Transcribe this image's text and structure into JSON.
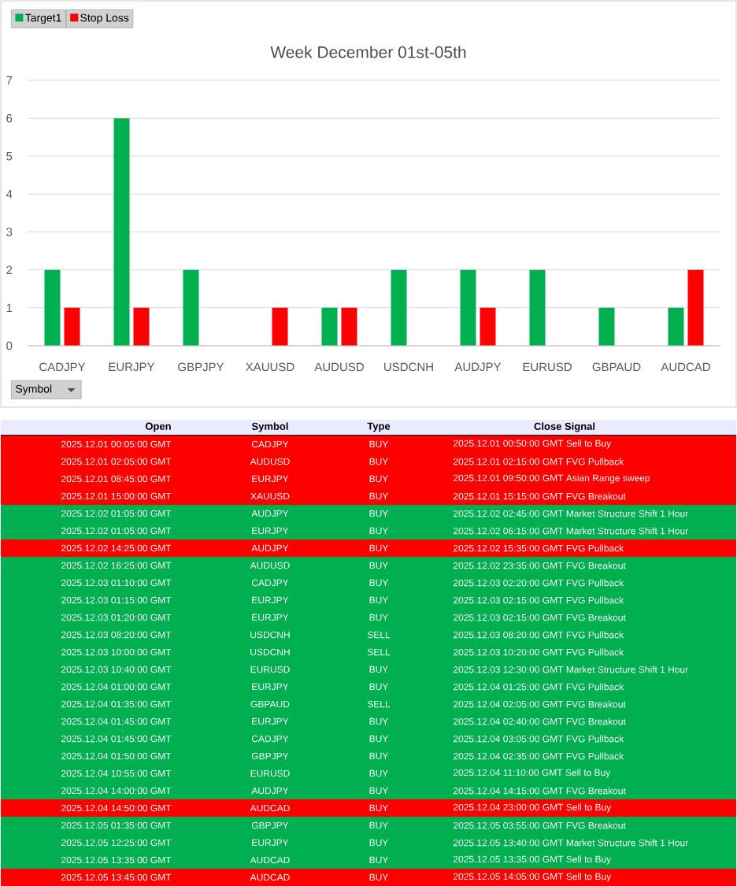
{
  "chart_data": [
    {
      "type": "bar",
      "title": "Week December 01st-05th",
      "xlabel": "Symbol",
      "categories": [
        "CADJPY",
        "EURJPY",
        "GBPJPY",
        "XAUUSD",
        "AUDUSD",
        "USDCNH",
        "AUDJPY",
        "EURUSD",
        "GBPAUD",
        "AUDCAD"
      ],
      "series": [
        {
          "name": "Target1",
          "color": "#00b050",
          "values": [
            2,
            6,
            2,
            null,
            1,
            2,
            2,
            2,
            1,
            1
          ]
        },
        {
          "name": "Stop Loss",
          "color": "#ff0000",
          "values": [
            1,
            1,
            null,
            1,
            1,
            null,
            1,
            null,
            null,
            2
          ]
        }
      ],
      "ylim": [
        0,
        7
      ],
      "yticks": [
        0,
        1,
        2,
        3,
        4,
        5,
        6,
        7
      ],
      "grid": "y",
      "legend": "top left"
    },
    {
      "type": "other",
      "colors": [
        "#ff0000",
        "#ff0000",
        "#ff0000",
        "#ff0000",
        "#00b050",
        "#00b050",
        "#ff0000",
        "#00b050",
        "#00b050",
        "#00b050",
        "#00b050",
        "#00b050",
        "#00b050",
        "#00b050",
        "#00b050",
        "#00b050",
        "#00b050",
        "#00b050",
        "#00b050",
        "#00b050",
        "#00b050",
        "#ff0000",
        "#00b050",
        "#00b050",
        "#00b050",
        "#ff0000"
      ],
      "annotations": [
        "Open",
        "Symbol",
        "Type",
        "Close Signal",
        "2025.12.01 00:05:00 GMT",
        "CADJPY",
        "BUY",
        "2025.12.01 00:50:00 GMT Sell to Buy",
        "2025.12.01 02:05:00 GMT",
        "AUDUSD",
        "BUY",
        "2025.12.01 02:15:00 GMT FVG Pullback",
        "2025.12.01 08:45:00 GMT",
        "EURJPY",
        "BUY",
        "2025.12.01 09:50:00 GMT Asian Range sweep",
        "2025.12.01 15:00:00 GMT",
        "XAUUSD",
        "BUY",
        "2025.12.01 15:15:00 GMT FVG Breakout",
        "2025.12.02 01:05:00 GMT",
        "AUDJPY",
        "BUY",
        "2025.12.02 02:45:00 GMT Market Structure Shift 1 Hour",
        "2025.12.02 01:05:00 GMT",
        "EURJPY",
        "BUY",
        "2025.12.02 06:15:00 GMT Market Structure Shift 1 Hour",
        "2025.12.02 14:25:00 GMT",
        "AUDJPY",
        "BUY",
        "2025.12.02 15:35:00 GMT FVG Pullback",
        "2025.12.02 16:25:00 GMT",
        "AUDUSD",
        "BUY",
        "2025.12.02 23:35:00 GMT FVG Breakout",
        "2025.12.03 01:10:00 GMT",
        "CADJPY",
        "BUY",
        "2025.12.03 02:20:00 GMT FVG Pullback",
        "2025.12.03 01:15:00 GMT",
        "EURJPY",
        "BUY",
        "2025.12.03 02:15:00 GMT FVG Pullback",
        "2025.12.03 01:20:00 GMT",
        "EURJPY",
        "BUY",
        "2025.12.03 02:15:00 GMT FVG Breakout",
        "2025.12.03 08:20:00 GMT",
        "USDCNH",
        "SELL",
        "2025.12.03 08:20:00 GMT FVG Pullback",
        "2025.12.03 10:00:00 GMT",
        "USDCNH",
        "SELL",
        "2025.12.03 10:20:00 GMT FVG Pullback",
        "2025.12.03 10:40:00 GMT",
        "EURUSD",
        "BUY",
        "2025.12.03 12:30:00 GMT Market Structure Shift 1 Hour",
        "2025.12.04 01:00:00 GMT",
        "EURJPY",
        "BUY",
        "2025.12.04 01:25:00 GMT FVG Pullback",
        "2025.12.04 01:35:00 GMT",
        "GBPAUD",
        "SELL",
        "2025.12.04 02:05:00 GMT FVG Breakout",
        "2025.12.04 01:45:00 GMT",
        "EURJPY",
        "BUY",
        "2025.12.04 02:40:00 GMT FVG Breakout",
        "2025.12.04 01:45:00 GMT",
        "CADJPY",
        "BUY",
        "2025.12.04 03:05:00 GMT FVG Pullback",
        "2025.12.04 01:50:00 GMT",
        "GBPJPY",
        "BUY",
        "2025.12.04 02:35:00 GMT FVG Pullback",
        "2025.12.04 10:55:00 GMT",
        "EURUSD",
        "BUY",
        "2025.12.04 11:10:00 GMT Sell to Buy",
        "2025.12.04 14:00:00 GMT",
        "AUDJPY",
        "BUY",
        "2025.12.04 14:15:00 GMT FVG Breakout",
        "2025.12.04 14:50:00 GMT",
        "AUDCAD",
        "BUY",
        "2025.12.04 23:00:00 GMT Sell to Buy",
        "2025.12.05 01:35:00 GMT",
        "GBPJPY",
        "BUY",
        "2025.12.05 03:55:00 GMT FVG Breakout",
        "2025.12.05 12:25:00 GMT",
        "EURJPY",
        "BUY",
        "2025.12.05 13:40:00 GMT Market Structure Shift 1 Hour",
        "2025.12.05 13:35:00 GMT",
        "AUDCAD",
        "BUY",
        "2025.12.05 13:35:00 GMT Sell to Buy",
        "2025.12.05 13:45:00 GMT",
        "AUDCAD",
        "BUY",
        "2025.12.05 14:05:00 GMT Sell to Buy"
      ]
    }
  ]
}
